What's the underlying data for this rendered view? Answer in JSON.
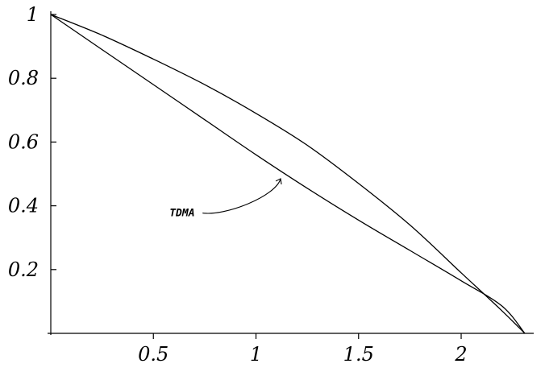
{
  "chart_data": {
    "type": "line",
    "title": "",
    "xlabel": "",
    "ylabel": "",
    "xlim": [
      0,
      2.33
    ],
    "ylim": [
      0,
      1.0
    ],
    "grid": false,
    "legend": "none",
    "x_ticks": [
      {
        "value": 0.5,
        "label": "0.5"
      },
      {
        "value": 1,
        "label": "1"
      },
      {
        "value": 1.5,
        "label": "1.5"
      },
      {
        "value": 2,
        "label": "2"
      }
    ],
    "y_ticks": [
      {
        "value": 0.2,
        "label": "0.2"
      },
      {
        "value": 0.4,
        "label": "0.4"
      },
      {
        "value": 0.6,
        "label": "0.6"
      },
      {
        "value": 0.8,
        "label": "0.8"
      },
      {
        "value": 1,
        "label": "1"
      }
    ],
    "series": [
      {
        "color": "#000000",
        "x": [
          0,
          0.25,
          0.5,
          0.75,
          1.0,
          1.25,
          1.5,
          1.75,
          2.0,
          2.2,
          2.31
        ],
        "y": [
          1.0,
          0.935,
          0.86,
          0.78,
          0.69,
          0.59,
          0.47,
          0.34,
          0.19,
          0.07,
          0.0
        ]
      },
      {
        "color": "#000000",
        "x": [
          0,
          0.25,
          0.5,
          0.75,
          1.0,
          1.25,
          1.5,
          1.75,
          2.0,
          2.2,
          2.31
        ],
        "y": [
          1.0,
          0.89,
          0.78,
          0.67,
          0.56,
          0.455,
          0.355,
          0.26,
          0.165,
          0.085,
          0.0
        ]
      }
    ],
    "annotations": [
      {
        "text": "TDMA",
        "x": 0.72,
        "y": 0.39,
        "arrow_to": [
          1.12,
          0.485
        ]
      }
    ]
  }
}
